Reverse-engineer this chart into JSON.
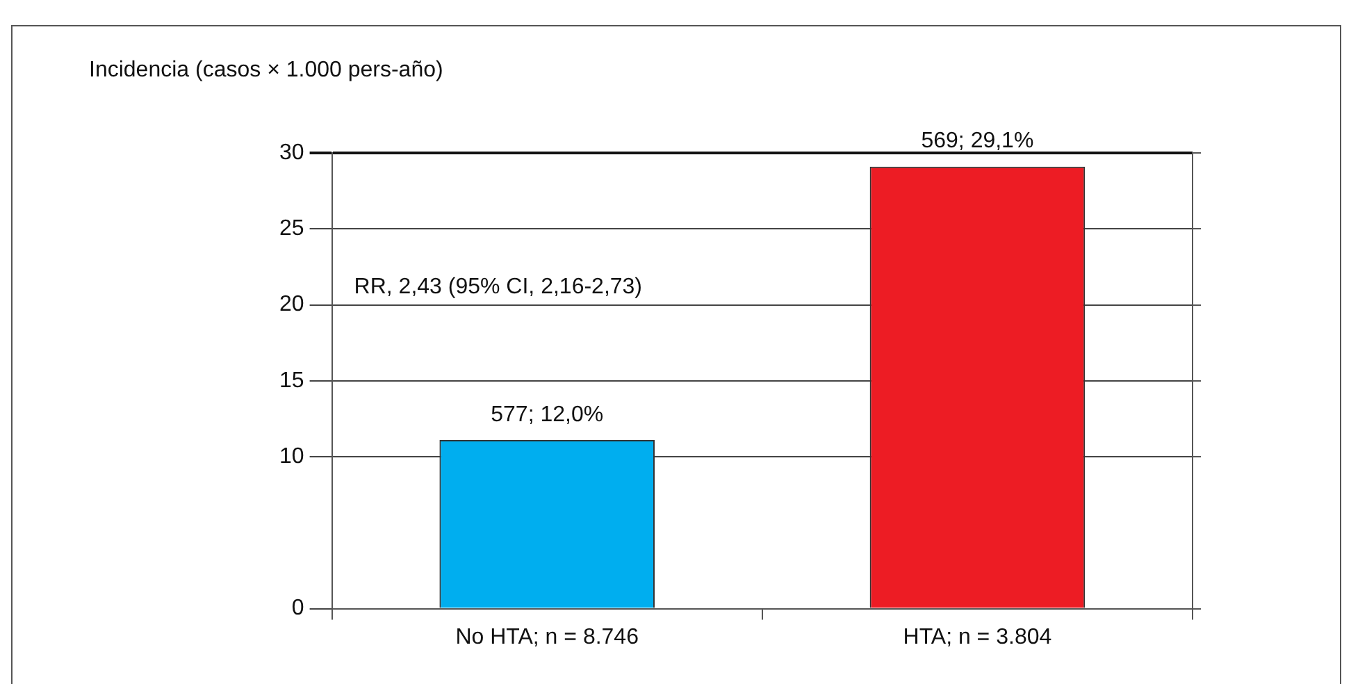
{
  "chart_data": {
    "type": "bar",
    "ylabel": "Incidencia (casos × 1.000 pers-año)",
    "categories": [
      "No HTA; n = 8.746",
      "HTA; n = 3.804"
    ],
    "values": [
      11.1,
      29.1
    ],
    "colors": [
      "#00aeef",
      "#ed1c24"
    ],
    "annotations": [
      "RR, 2,43 (95% CI, 2,16-2,73)",
      {
        "text": "577; 12,0%",
        "x": "No HTA; n = 8.746",
        "y": 11.1
      },
      {
        "text": "569; 29,1%",
        "x": "HTA; n = 3.804",
        "y": 29.1
      }
    ],
    "ylim": [
      0,
      30
    ],
    "yticks": [
      0,
      10,
      15,
      20,
      25,
      30
    ],
    "grid": "y",
    "legend": false
  }
}
